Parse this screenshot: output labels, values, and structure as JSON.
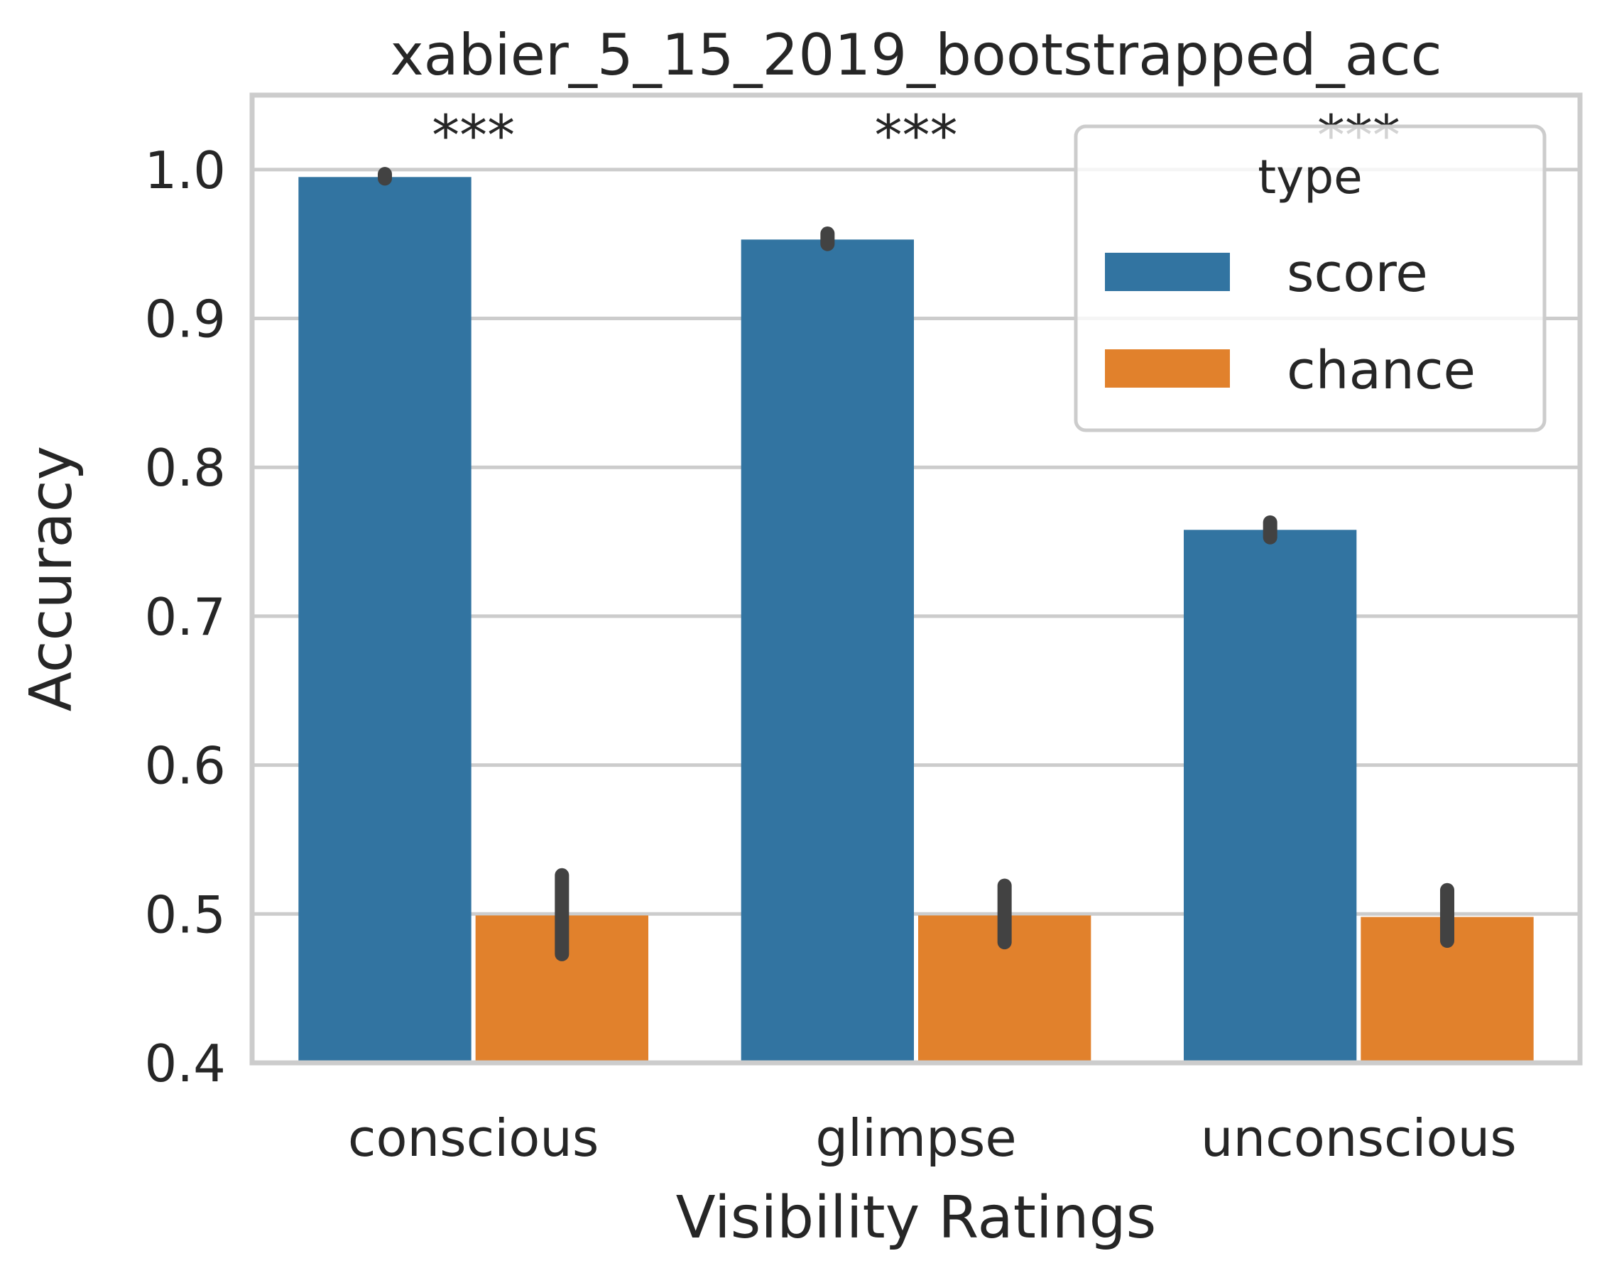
{
  "chart_data": {
    "type": "bar",
    "title": "xabier_5_15_2019_bootstrapped_acc",
    "xlabel": "Visibility Ratings",
    "ylabel": "Accuracy",
    "ylim": [
      0.4,
      1.05
    ],
    "yticks": [
      "0.4",
      "0.5",
      "0.6",
      "0.7",
      "0.8",
      "0.9",
      "1.0"
    ],
    "grid": true,
    "categories": [
      "conscious",
      "glimpse",
      "unconscious"
    ],
    "series": [
      {
        "name": "score",
        "color": "#3274a1",
        "values": [
          0.995,
          0.953,
          0.758
        ],
        "error_low": [
          0.994,
          0.95,
          0.753
        ],
        "error_high": [
          0.997,
          0.957,
          0.763
        ]
      },
      {
        "name": "chance",
        "color": "#e1812c",
        "values": [
          0.499,
          0.499,
          0.498
        ],
        "error_low": [
          0.473,
          0.481,
          0.482
        ],
        "error_high": [
          0.526,
          0.519,
          0.516
        ]
      }
    ],
    "annotations": [
      "***",
      "***",
      "***"
    ],
    "legend": {
      "title": "type",
      "position": "top-right"
    },
    "error_bar_color": "#424242"
  }
}
